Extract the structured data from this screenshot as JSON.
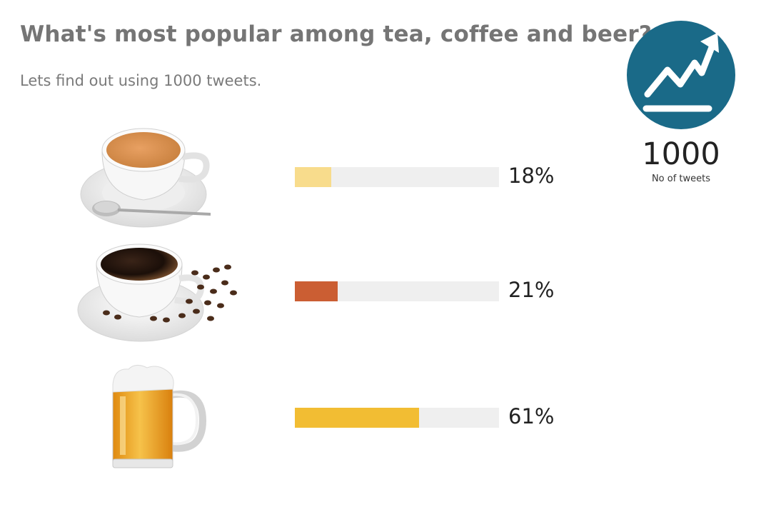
{
  "header": {
    "title": "What's most popular among tea, coffee and beer?",
    "subtitle": "Lets find out using 1000 tweets."
  },
  "stat": {
    "icon": "trend-up-icon",
    "value": "1000",
    "label": "No of tweets",
    "circle_color": "#1a6a88"
  },
  "chart_data": {
    "type": "bar",
    "categories": [
      "tea",
      "coffee",
      "beer"
    ],
    "values": [
      18,
      21,
      61
    ],
    "value_labels": [
      "18%",
      "21%",
      "61%"
    ],
    "colors": [
      "#f8dc8c",
      "#cb5e33",
      "#f2bd33"
    ],
    "track_color": "#efefef",
    "xlim": [
      0,
      100
    ],
    "orientation": "horizontal"
  }
}
